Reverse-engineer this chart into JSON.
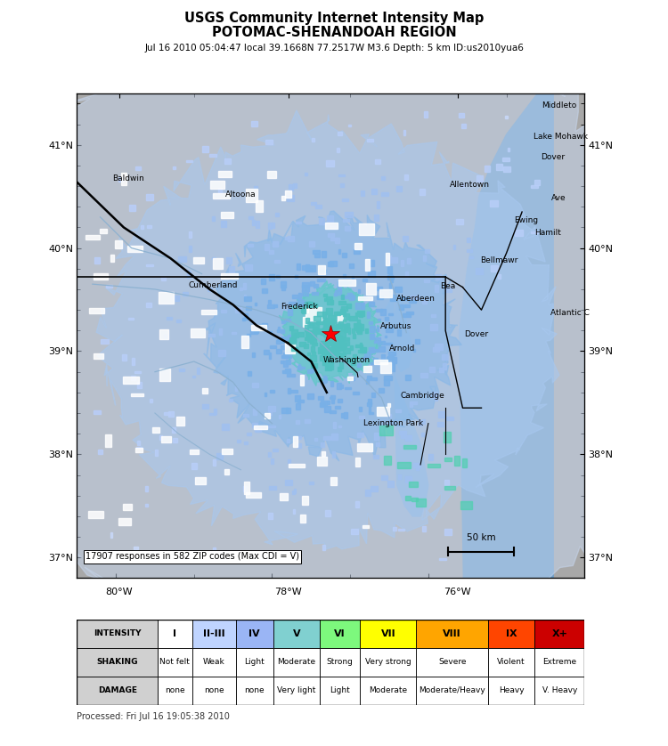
{
  "title_line1": "USGS Community Internet Intensity Map",
  "title_line2": "POTOMAC-SHENANDOAH REGION",
  "subtitle": "Jul 16 2010 05:04:47 local 39.1668N 77.2517W M3.6 Depth: 5 km ID:us2010yua6",
  "processed": "Processed: Fri Jul 16 19:05:38 2010",
  "responses_text": "17907 responses in 582 ZIP codes (Max CDI = V)",
  "scale_text": "50 km",
  "epicenter": [
    -77.2517,
    39.1668
  ],
  "map_xlim": [
    -80.5,
    -74.5
  ],
  "map_ylim": [
    36.8,
    41.5
  ],
  "map_bg_color": "#a8a8a8",
  "ocean_color": "#6e9ec8",
  "fig_bg_color": "#ffffff",
  "intensity_labels": [
    "I",
    "II-III",
    "IV",
    "V",
    "VI",
    "VII",
    "VIII",
    "IX",
    "X+"
  ],
  "intensity_cell_colors": [
    "#ffffff",
    "#bfd4ff",
    "#9ab5f5",
    "#80d0d0",
    "#7df87d",
    "#ffff00",
    "#ffa500",
    "#ff4500",
    "#cc0000"
  ],
  "shaking_labels": [
    "Not felt",
    "Weak",
    "Light",
    "Moderate",
    "Strong",
    "Very strong",
    "Severe",
    "Violent",
    "Extreme"
  ],
  "damage_labels": [
    "none",
    "none",
    "none",
    "Very light",
    "Light",
    "Moderate",
    "Moderate/Heavy",
    "Heavy",
    "V. Heavy"
  ],
  "city_labels": [
    {
      "name": "Altoona",
      "lon": -78.4,
      "lat": 40.52,
      "ha": "center"
    },
    {
      "name": "Baldwin",
      "lon": -80.05,
      "lat": 40.67,
      "ha": "left"
    },
    {
      "name": "Cumberland",
      "lon": -78.76,
      "lat": 39.64,
      "ha": "center"
    },
    {
      "name": "Frederick",
      "lon": -77.41,
      "lat": 39.43,
      "ha": "right"
    },
    {
      "name": "Washington",
      "lon": -77.04,
      "lat": 38.91,
      "ha": "center"
    },
    {
      "name": "Arbutus",
      "lon": -76.62,
      "lat": 39.24,
      "ha": "left"
    },
    {
      "name": "Arnold",
      "lon": -76.5,
      "lat": 39.03,
      "ha": "left"
    },
    {
      "name": "Aberdeen",
      "lon": -76.16,
      "lat": 39.51,
      "ha": "center"
    },
    {
      "name": "Bea",
      "lon": -75.85,
      "lat": 39.63,
      "ha": "left"
    },
    {
      "name": "Dover",
      "lon": -75.54,
      "lat": 39.16,
      "ha": "left"
    },
    {
      "name": "Cambridge",
      "lon": -76.07,
      "lat": 38.57,
      "ha": "center"
    },
    {
      "name": "Lexington Park",
      "lon": -76.45,
      "lat": 38.3,
      "ha": "center"
    },
    {
      "name": "Allentown",
      "lon": -75.47,
      "lat": 40.61,
      "ha": "center"
    },
    {
      "name": "Ewing",
      "lon": -74.9,
      "lat": 40.27,
      "ha": "left"
    },
    {
      "name": "Bellmawr",
      "lon": -75.09,
      "lat": 39.88,
      "ha": "center"
    },
    {
      "name": "Hamilt",
      "lon": -74.64,
      "lat": 40.15,
      "ha": "left"
    },
    {
      "name": "Atlantic C",
      "lon": -74.44,
      "lat": 39.37,
      "ha": "left"
    },
    {
      "name": "Middleto",
      "lon": -74.55,
      "lat": 41.38,
      "ha": "left"
    },
    {
      "name": "Lake Mohawk",
      "lon": -74.65,
      "lat": 41.08,
      "ha": "left"
    },
    {
      "name": "Dover",
      "lon": -74.56,
      "lat": 40.88,
      "ha": "left"
    },
    {
      "name": "Ave",
      "lon": -74.42,
      "lat": 40.48,
      "ha": "left"
    }
  ],
  "lat_ticks": [
    37,
    38,
    39,
    40,
    41
  ],
  "lon_ticks": [
    -80,
    -78,
    -76
  ],
  "fig_width": 7.5,
  "fig_height": 8.38
}
